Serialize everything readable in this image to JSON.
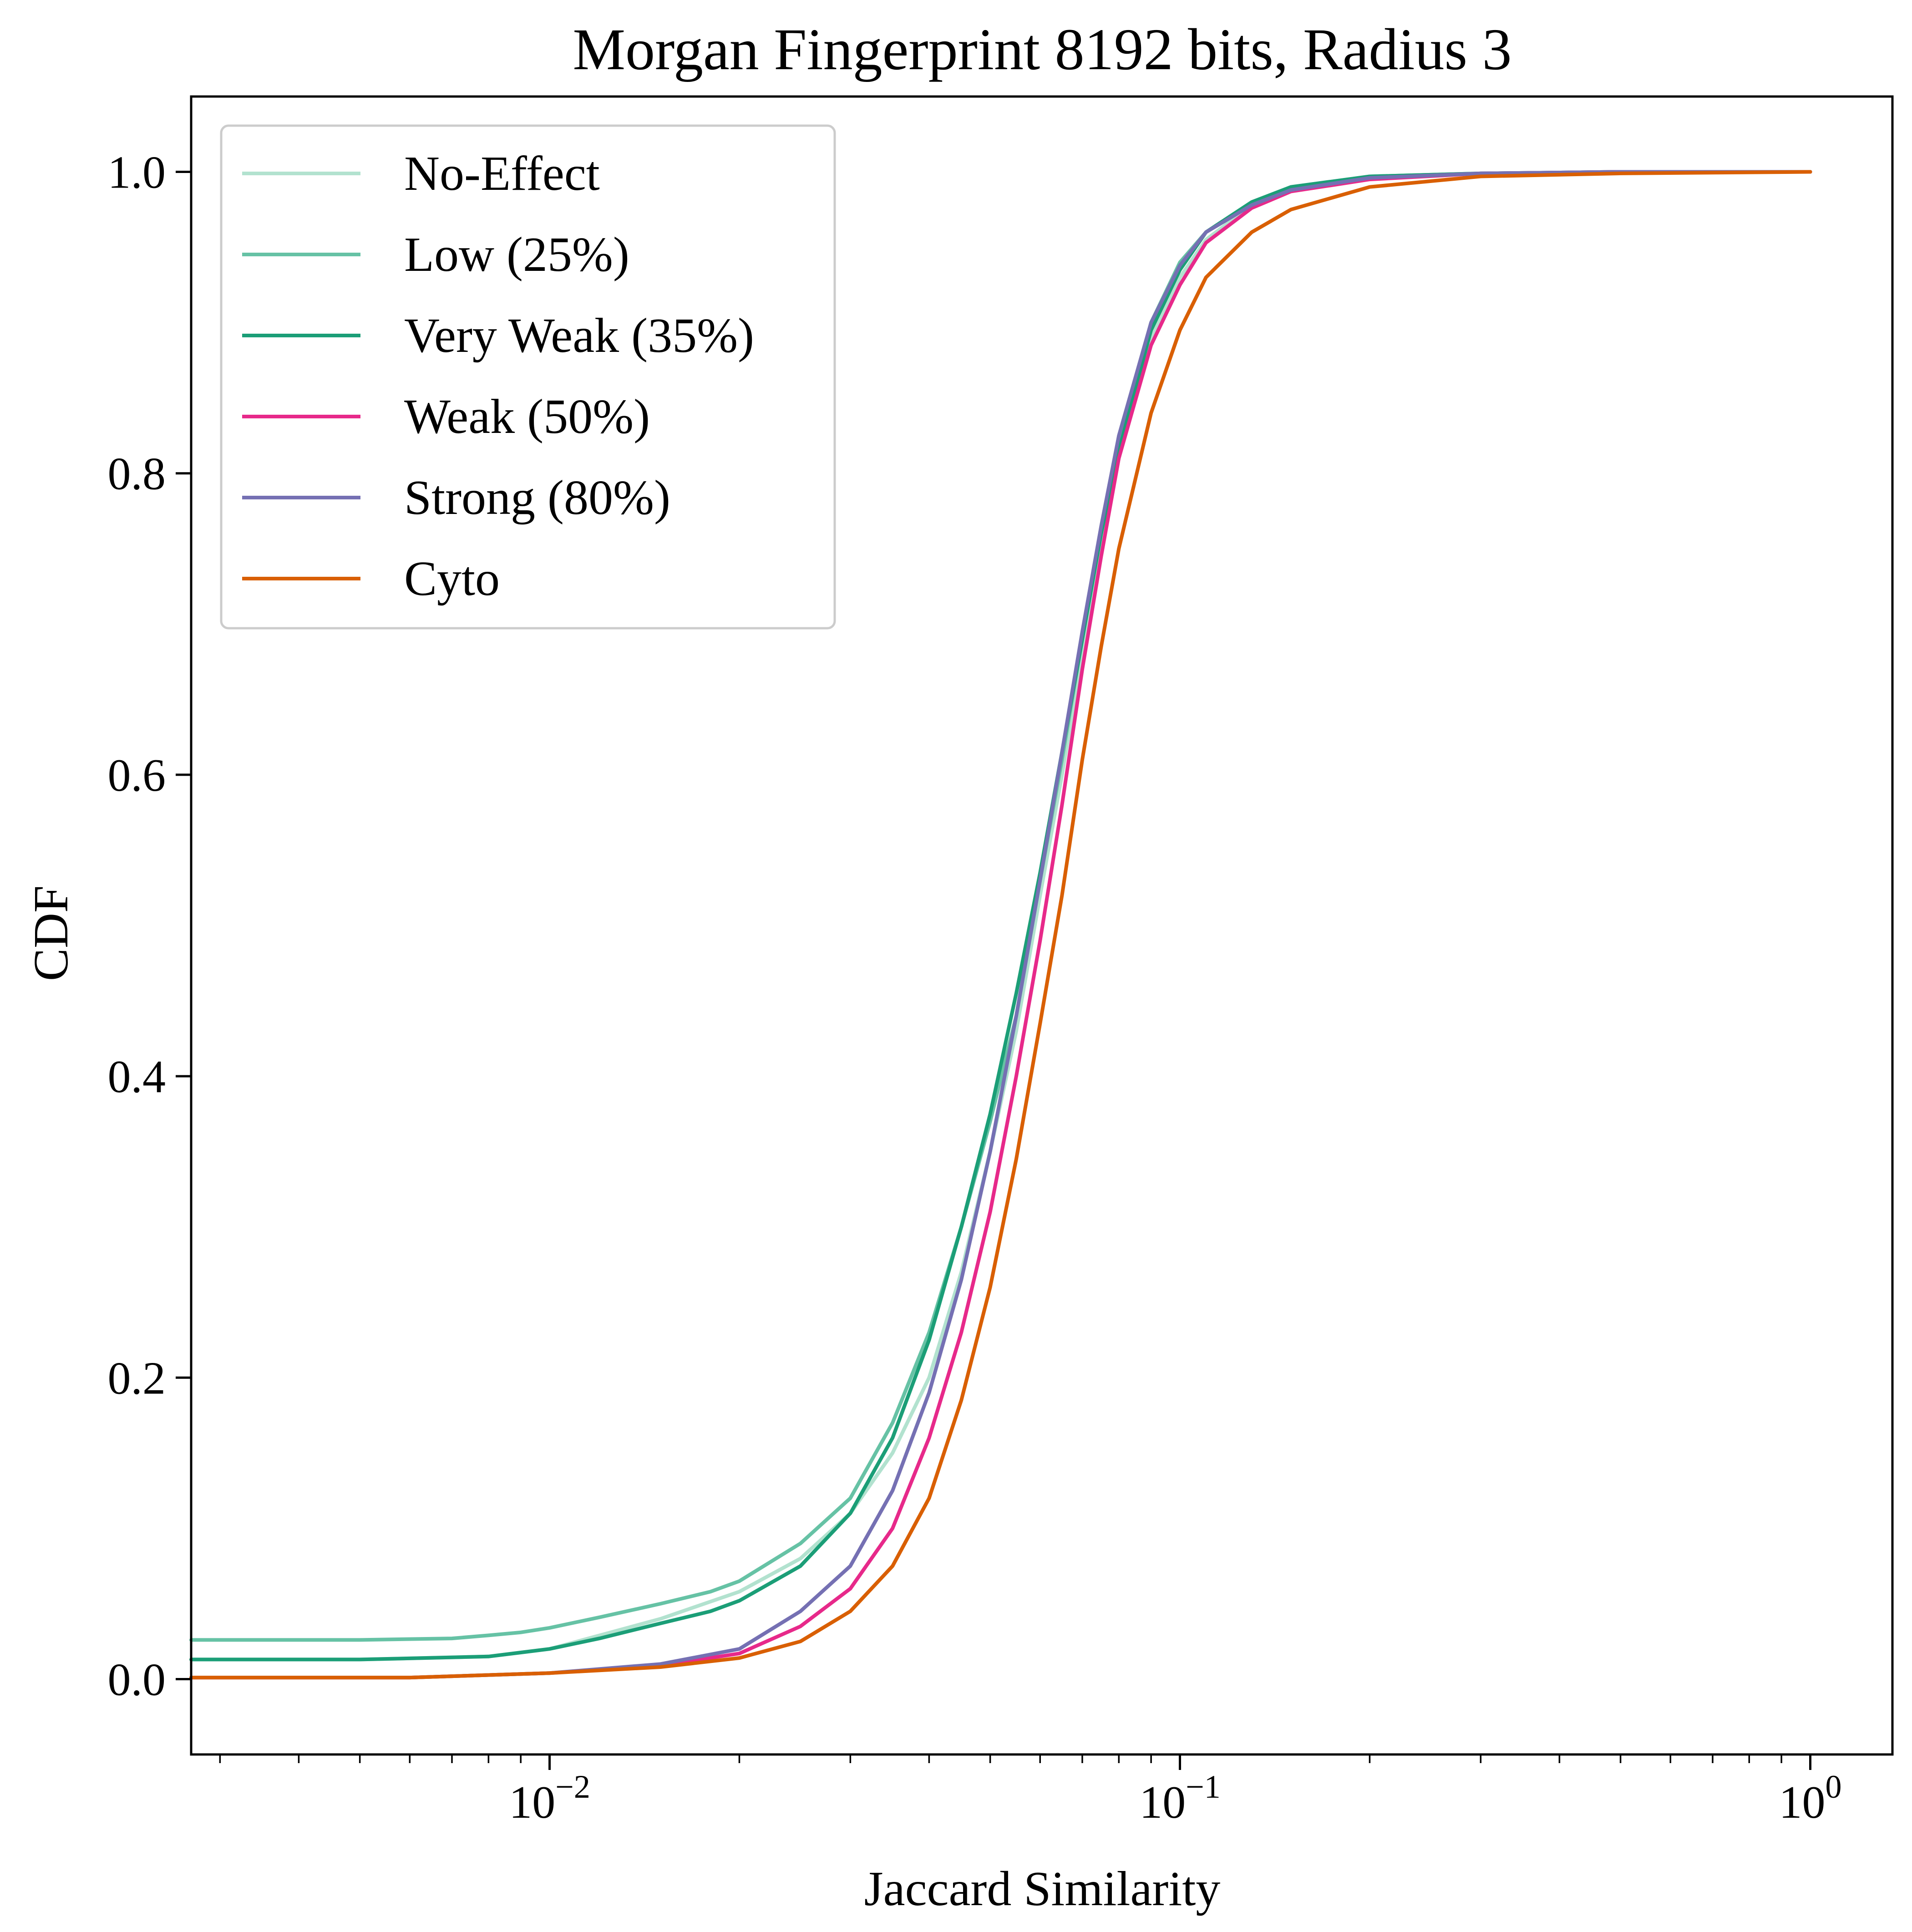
{
  "chart_data": {
    "type": "line",
    "title": "Morgan Fingerprint 8192 bits, Radius 3",
    "xlabel": "Jaccard Similarity",
    "ylabel": "CDF",
    "xscale": "log",
    "xlim": [
      0.0027,
      1.35
    ],
    "ylim": [
      -0.05,
      1.05
    ],
    "xticks": [
      {
        "value": 0.01,
        "base": "10",
        "exp": "−2"
      },
      {
        "value": 0.1,
        "base": "10",
        "exp": "−1"
      },
      {
        "value": 1,
        "base": "10",
        "exp": "0"
      }
    ],
    "yticks": [
      {
        "value": 0.0,
        "label": "0.0"
      },
      {
        "value": 0.2,
        "label": "0.2"
      },
      {
        "value": 0.4,
        "label": "0.4"
      },
      {
        "value": 0.6,
        "label": "0.6"
      },
      {
        "value": 0.8,
        "label": "0.8"
      },
      {
        "value": 1.0,
        "label": "1.0"
      }
    ],
    "grid": false,
    "legend_position": "upper-left",
    "series": [
      {
        "name": "No-Effect",
        "color": "#b2e2cf",
        "x": [
          0.0027,
          0.005,
          0.008,
          0.01,
          0.015,
          0.02,
          0.025,
          0.03,
          0.035,
          0.04,
          0.045,
          0.05,
          0.055,
          0.06,
          0.065,
          0.07,
          0.075,
          0.08,
          0.09,
          0.1,
          0.11,
          0.13,
          0.15,
          0.2,
          0.3,
          0.5,
          1.0
        ],
        "y": [
          0.013,
          0.013,
          0.015,
          0.02,
          0.04,
          0.058,
          0.08,
          0.11,
          0.15,
          0.2,
          0.27,
          0.35,
          0.43,
          0.52,
          0.6,
          0.68,
          0.75,
          0.81,
          0.89,
          0.93,
          0.955,
          0.978,
          0.988,
          0.996,
          0.999,
          1.0,
          1.0
        ]
      },
      {
        "name": "Low (25%)",
        "color": "#66c2a5",
        "x": [
          0.0027,
          0.005,
          0.007,
          0.008,
          0.009,
          0.01,
          0.012,
          0.015,
          0.018,
          0.02,
          0.025,
          0.03,
          0.035,
          0.04,
          0.045,
          0.05,
          0.055,
          0.06,
          0.065,
          0.07,
          0.075,
          0.08,
          0.09,
          0.1,
          0.11,
          0.13,
          0.15,
          0.2,
          0.3,
          0.5,
          1.0
        ],
        "y": [
          0.026,
          0.026,
          0.027,
          0.029,
          0.031,
          0.034,
          0.041,
          0.05,
          0.058,
          0.065,
          0.09,
          0.12,
          0.17,
          0.23,
          0.3,
          0.37,
          0.44,
          0.53,
          0.61,
          0.69,
          0.76,
          0.82,
          0.9,
          0.94,
          0.96,
          0.98,
          0.99,
          0.997,
          0.999,
          1.0,
          1.0
        ]
      },
      {
        "name": "Very Weak (35%)",
        "color": "#1b9e77",
        "x": [
          0.0027,
          0.005,
          0.008,
          0.01,
          0.012,
          0.015,
          0.018,
          0.02,
          0.025,
          0.03,
          0.035,
          0.04,
          0.045,
          0.05,
          0.055,
          0.06,
          0.065,
          0.07,
          0.075,
          0.08,
          0.09,
          0.1,
          0.11,
          0.13,
          0.15,
          0.2,
          0.3,
          0.5,
          1.0
        ],
        "y": [
          0.013,
          0.013,
          0.015,
          0.02,
          0.027,
          0.037,
          0.045,
          0.052,
          0.075,
          0.11,
          0.16,
          0.225,
          0.3,
          0.375,
          0.455,
          0.535,
          0.615,
          0.69,
          0.76,
          0.815,
          0.895,
          0.935,
          0.96,
          0.98,
          0.99,
          0.997,
          0.999,
          1.0,
          1.0
        ]
      },
      {
        "name": "Weak (50%)",
        "color": "#e7298a",
        "x": [
          0.0027,
          0.006,
          0.01,
          0.015,
          0.02,
          0.025,
          0.03,
          0.035,
          0.04,
          0.045,
          0.05,
          0.055,
          0.06,
          0.065,
          0.07,
          0.075,
          0.08,
          0.09,
          0.1,
          0.11,
          0.13,
          0.15,
          0.2,
          0.3,
          0.5,
          1.0
        ],
        "y": [
          0.001,
          0.001,
          0.004,
          0.009,
          0.017,
          0.035,
          0.06,
          0.1,
          0.16,
          0.23,
          0.31,
          0.4,
          0.49,
          0.58,
          0.67,
          0.745,
          0.81,
          0.885,
          0.925,
          0.953,
          0.976,
          0.987,
          0.995,
          0.999,
          1.0,
          1.0
        ]
      },
      {
        "name": "Strong (80%)",
        "color": "#7570b3",
        "x": [
          0.0027,
          0.006,
          0.01,
          0.015,
          0.02,
          0.025,
          0.03,
          0.035,
          0.04,
          0.045,
          0.05,
          0.055,
          0.06,
          0.065,
          0.07,
          0.075,
          0.08,
          0.09,
          0.1,
          0.11,
          0.13,
          0.15,
          0.2,
          0.3,
          0.5,
          1.0
        ],
        "y": [
          0.001,
          0.001,
          0.004,
          0.01,
          0.02,
          0.045,
          0.075,
          0.125,
          0.19,
          0.265,
          0.35,
          0.44,
          0.53,
          0.615,
          0.695,
          0.765,
          0.825,
          0.9,
          0.938,
          0.96,
          0.978,
          0.988,
          0.996,
          0.999,
          1.0,
          1.0
        ]
      },
      {
        "name": "Cyto",
        "color": "#d95f02",
        "x": [
          0.0027,
          0.006,
          0.01,
          0.015,
          0.02,
          0.025,
          0.03,
          0.035,
          0.04,
          0.045,
          0.05,
          0.055,
          0.06,
          0.065,
          0.07,
          0.075,
          0.08,
          0.09,
          0.1,
          0.11,
          0.13,
          0.15,
          0.2,
          0.3,
          0.5,
          1.0
        ],
        "y": [
          0.001,
          0.001,
          0.004,
          0.008,
          0.014,
          0.025,
          0.045,
          0.075,
          0.12,
          0.185,
          0.26,
          0.345,
          0.435,
          0.52,
          0.61,
          0.685,
          0.75,
          0.84,
          0.895,
          0.93,
          0.96,
          0.975,
          0.99,
          0.997,
          0.999,
          1.0
        ]
      }
    ]
  }
}
